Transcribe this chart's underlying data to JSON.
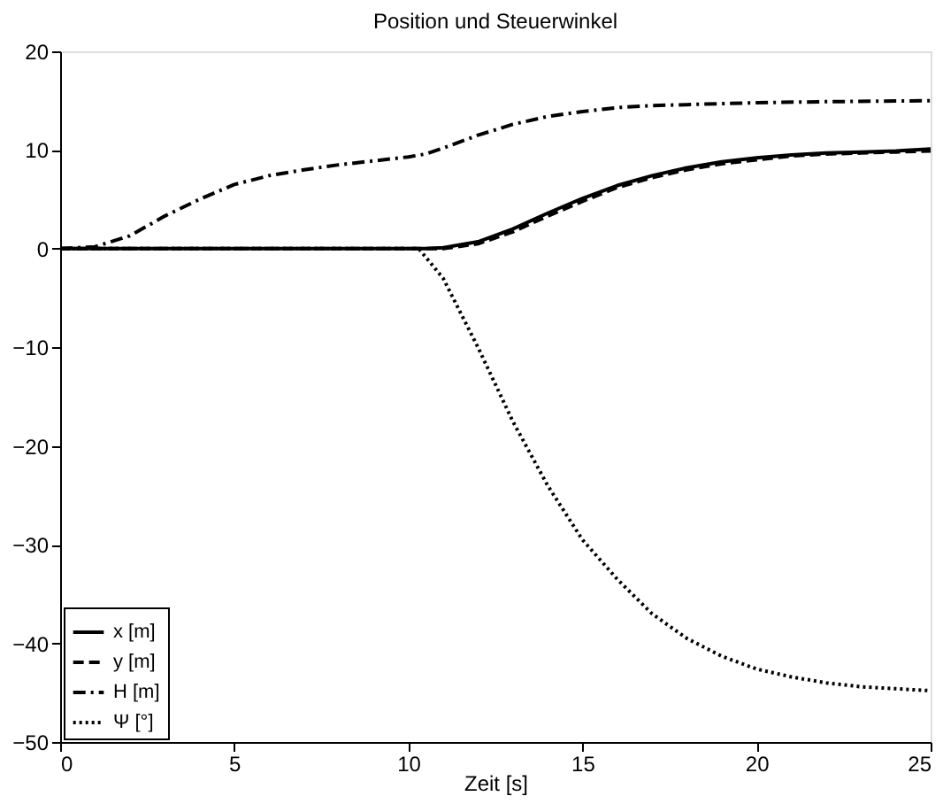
{
  "chart_data": {
    "type": "line",
    "title": "Position und Steuerwinkel",
    "xlabel": "Zeit [s]",
    "xlim": [
      0,
      25
    ],
    "ylim": [
      -50,
      20
    ],
    "xticks": [
      0,
      5,
      10,
      15,
      20,
      25
    ],
    "yticks": [
      -50,
      -40,
      -30,
      -20,
      -10,
      0,
      10,
      20
    ],
    "grid": false,
    "legend": "bottom left",
    "marker": "none",
    "series": [
      {
        "name": "x [m]",
        "color": "#000000",
        "line_style": "solid",
        "x": [
          0,
          5,
          10,
          10.5,
          11,
          12,
          13,
          14,
          15,
          16,
          17,
          18,
          19,
          20,
          21,
          22,
          23,
          24,
          25
        ],
        "values": [
          0,
          0,
          0,
          0,
          0.1,
          0.7,
          2,
          3.6,
          5.1,
          6.4,
          7.4,
          8.2,
          8.8,
          9.2,
          9.5,
          9.7,
          9.8,
          9.9,
          10.1
        ]
      },
      {
        "name": "y [m]",
        "color": "#000000",
        "line_style": "dashed",
        "x": [
          0,
          5,
          10,
          10.5,
          11,
          12,
          13,
          14,
          15,
          16,
          17,
          18,
          19,
          20,
          21,
          22,
          23,
          24,
          25
        ],
        "values": [
          0,
          0,
          0,
          0,
          0,
          0.5,
          1.7,
          3.3,
          4.8,
          6.2,
          7.2,
          8.0,
          8.6,
          9.0,
          9.4,
          9.6,
          9.7,
          9.8,
          9.9
        ]
      },
      {
        "name": "H [m]",
        "color": "#000000",
        "line_style": "dashdot",
        "x": [
          0,
          1,
          2,
          3,
          4,
          5,
          6,
          7,
          8,
          9,
          10,
          10.5,
          11,
          12,
          13,
          14,
          15,
          16,
          17,
          18,
          20,
          22,
          25
        ],
        "values": [
          0,
          0.2,
          1.3,
          3.3,
          5,
          6.5,
          7.4,
          8,
          8.5,
          8.9,
          9.3,
          9.6,
          10.2,
          11.5,
          12.6,
          13.4,
          13.9,
          14.3,
          14.5,
          14.6,
          14.8,
          14.9,
          15
        ]
      },
      {
        "name": "Ψ [°]",
        "color": "#000000",
        "line_style": "dotted",
        "x": [
          0,
          5,
          10,
          10.3,
          11,
          12,
          13,
          14,
          15,
          16,
          17,
          18,
          19,
          20,
          21,
          22,
          23,
          24,
          25
        ],
        "values": [
          0,
          0,
          0,
          0,
          -3,
          -10,
          -17.5,
          -24,
          -29.5,
          -33.5,
          -37,
          -39.5,
          -41.3,
          -42.6,
          -43.4,
          -44,
          -44.4,
          -44.6,
          -44.8
        ]
      }
    ]
  }
}
